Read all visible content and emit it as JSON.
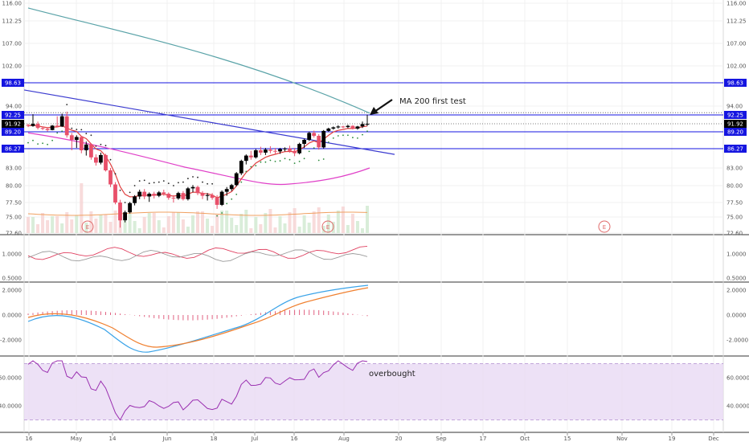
{
  "chart_data": {
    "type": "candlestick",
    "price_axis": {
      "ticks": [
        "116.00",
        "112.25",
        "107.00",
        "102.00",
        "98.63",
        "94.00",
        "92.25",
        "91.92",
        "89.20",
        "86.27",
        "83.00",
        "80.00",
        "77.50",
        "75.00",
        "72.60"
      ],
      "tick_values": [
        116.0,
        112.25,
        107.0,
        102.0,
        98.63,
        94.0,
        92.25,
        91.92,
        89.2,
        86.27,
        83.0,
        80.0,
        77.5,
        75.0,
        72.6
      ],
      "highlighted": [
        {
          "label": "98.63",
          "value": 98.63,
          "color": "#1515e0"
        },
        {
          "label": "92.25",
          "value": 92.25,
          "color": "#1515e0"
        },
        {
          "label": "91.92",
          "value": 91.92,
          "color": "#000000"
        },
        {
          "label": "89.20",
          "value": 89.2,
          "color": "#1515e0"
        },
        {
          "label": "86.27",
          "value": 86.27,
          "color": "#1515e0"
        }
      ]
    },
    "date_axis": {
      "labels": [
        "16",
        "May",
        "14",
        "Jun",
        "18",
        "Jul",
        "16",
        "Aug",
        "20",
        "Sep",
        "17",
        "Oct",
        "15",
        "Nov",
        "19",
        "Dec"
      ]
    },
    "candles": [
      [
        91.5,
        91.9,
        90.8,
        91.2
      ],
      [
        91.2,
        92.4,
        90.9,
        91.9
      ],
      [
        91.9,
        92.0,
        90.0,
        90.5
      ],
      [
        90.5,
        91.0,
        89.8,
        90.2
      ],
      [
        90.2,
        90.6,
        89.3,
        89.8
      ],
      [
        89.8,
        91.5,
        89.7,
        91.3
      ],
      [
        91.3,
        92.2,
        90.7,
        91.0
      ],
      [
        91.0,
        92.5,
        90.8,
        92.2
      ],
      [
        92.2,
        92.9,
        88.2,
        88.6
      ],
      [
        88.6,
        89.0,
        86.0,
        87.8
      ],
      [
        87.8,
        88.6,
        86.4,
        88.3
      ],
      [
        88.3,
        88.5,
        85.5,
        86.0
      ],
      [
        86.0,
        87.5,
        85.1,
        87.0
      ],
      [
        87.0,
        87.2,
        84.4,
        84.8
      ],
      [
        84.8,
        85.3,
        83.4,
        83.9
      ],
      [
        83.9,
        85.6,
        83.6,
        85.2
      ],
      [
        85.2,
        85.4,
        82.4,
        82.6
      ],
      [
        82.6,
        83.0,
        79.8,
        80.2
      ],
      [
        80.2,
        80.6,
        77.2,
        77.5
      ],
      [
        77.5,
        77.9,
        73.4,
        74.5
      ],
      [
        74.5,
        76.1,
        74.2,
        75.8
      ],
      [
        75.8,
        77.6,
        75.6,
        77.4
      ],
      [
        77.4,
        78.6,
        77.0,
        78.4
      ],
      [
        78.4,
        79.4,
        78.0,
        79.1
      ],
      [
        79.1,
        79.5,
        78.0,
        78.4
      ],
      [
        78.4,
        79.0,
        77.6,
        78.8
      ],
      [
        78.8,
        79.1,
        78.1,
        78.5
      ],
      [
        78.5,
        79.2,
        78.3,
        79.0
      ],
      [
        79.0,
        79.4,
        78.5,
        78.8
      ],
      [
        78.8,
        79.0,
        77.9,
        78.2
      ],
      [
        78.2,
        78.6,
        77.5,
        78.1
      ],
      [
        78.1,
        79.1,
        77.9,
        78.9
      ],
      [
        78.9,
        79.2,
        77.8,
        78.0
      ],
      [
        78.0,
        79.8,
        77.8,
        79.6
      ],
      [
        79.6,
        80.1,
        79.0,
        79.8
      ],
      [
        79.8,
        80.0,
        78.6,
        78.9
      ],
      [
        78.9,
        79.2,
        78.0,
        78.5
      ],
      [
        78.5,
        78.9,
        77.8,
        78.6
      ],
      [
        78.6,
        78.9,
        77.9,
        78.2
      ],
      [
        78.2,
        78.6,
        76.4,
        77.1
      ],
      [
        77.1,
        79.3,
        76.9,
        79.1
      ],
      [
        79.1,
        79.8,
        78.5,
        79.5
      ],
      [
        79.5,
        80.3,
        79.2,
        80.1
      ],
      [
        80.1,
        82.3,
        79.9,
        82.1
      ],
      [
        82.1,
        84.4,
        81.8,
        84.2
      ],
      [
        84.2,
        85.3,
        83.6,
        85.1
      ],
      [
        85.1,
        85.9,
        84.4,
        84.8
      ],
      [
        84.8,
        86.2,
        84.6,
        86.0
      ],
      [
        86.0,
        86.6,
        85.2,
        85.6
      ],
      [
        85.6,
        86.4,
        85.2,
        86.1
      ],
      [
        86.1,
        86.7,
        85.5,
        85.9
      ],
      [
        85.9,
        86.4,
        85.3,
        85.8
      ],
      [
        85.8,
        86.4,
        85.4,
        86.2
      ],
      [
        86.2,
        86.5,
        85.8,
        86.3
      ],
      [
        86.3,
        86.8,
        85.6,
        85.9
      ],
      [
        85.9,
        86.4,
        85.0,
        85.5
      ],
      [
        85.5,
        87.3,
        85.3,
        87.1
      ],
      [
        87.1,
        88.0,
        86.4,
        87.8
      ],
      [
        87.8,
        89.2,
        87.6,
        89.0
      ],
      [
        89.0,
        89.6,
        88.2,
        88.5
      ],
      [
        88.5,
        88.8,
        86.1,
        86.5
      ],
      [
        86.5,
        89.8,
        86.3,
        89.5
      ],
      [
        89.5,
        90.6,
        89.2,
        90.3
      ],
      [
        90.3,
        91.0,
        89.9,
        90.7
      ],
      [
        90.7,
        91.4,
        90.3,
        91.0
      ],
      [
        91.0,
        91.2,
        90.4,
        90.8
      ],
      [
        90.8,
        91.6,
        90.4,
        91.2
      ],
      [
        91.2,
        91.4,
        90.0,
        90.3
      ],
      [
        90.3,
        91.2,
        89.9,
        91.0
      ],
      [
        91.0,
        92.0,
        90.5,
        91.8
      ],
      [
        91.8,
        92.3,
        91.2,
        91.9
      ]
    ],
    "indicator_axes": {
      "panel1": [
        "1.0000",
        "0.5000"
      ],
      "panel2": [
        "2.0000",
        "0.0000",
        "-2.0000"
      ],
      "panel3": [
        "60.0000",
        "40.0000"
      ]
    },
    "overlay_lines": {
      "ma200_start": 115.0,
      "ma200_end": 92.6,
      "trendline_start": 97.2,
      "trendline_end": 85.3,
      "ma50_start": 89.0,
      "ma50_low": 79.8,
      "ma50_end": 83.0
    },
    "rsi_band": [
      30,
      70
    ]
  },
  "annotations": {
    "ma200_note": "MA 200 first test",
    "overbought_note": "overbought",
    "earnings_marker": "E"
  },
  "colors": {
    "level_line": "#1515e0",
    "ma200": "#5aa3a8",
    "trendline": "#3b3bd0",
    "ma50": "#e040c8",
    "ema_fast": "#e04040",
    "macd_line": "#3aa3e8",
    "signal_line": "#f08030",
    "rsi_line": "#9a2fb0",
    "rsi_band_fill": "#e8daf4",
    "bull_candle": "#000000",
    "bear_candle": "#e8506a"
  }
}
